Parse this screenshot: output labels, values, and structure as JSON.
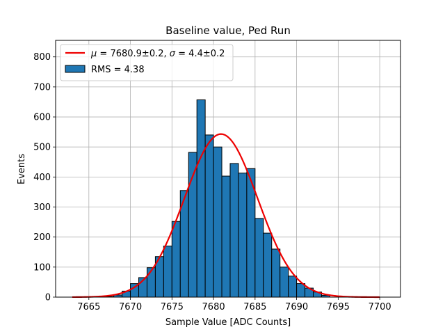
{
  "chart_data": {
    "type": "bar",
    "title": "Baseline value, Ped Run",
    "xlabel": "Sample Value [ADC Counts]",
    "ylabel": "Events",
    "xlim": [
      7661,
      7702.5
    ],
    "ylim": [
      0,
      855
    ],
    "xticks": [
      7665,
      7670,
      7675,
      7680,
      7685,
      7690,
      7695,
      7700
    ],
    "yticks": [
      0,
      100,
      200,
      300,
      400,
      500,
      600,
      700,
      800
    ],
    "grid": true,
    "legend_position": "top-left",
    "histogram": {
      "name": "RMS = 4.38",
      "color": "#1f77b4",
      "edgecolor": "#000000",
      "bin_edges": [
        7667,
        7668,
        7669,
        7670,
        7671,
        7672,
        7673,
        7674,
        7675,
        7676,
        7677,
        7678,
        7679,
        7680,
        7681,
        7682,
        7683,
        7684,
        7685,
        7686,
        7687,
        7688,
        7689,
        7690,
        7691,
        7692,
        7693,
        7694
      ],
      "counts": [
        2,
        7,
        20,
        45,
        65,
        98,
        135,
        170,
        252,
        355,
        482,
        657,
        540,
        500,
        403,
        445,
        413,
        428,
        262,
        213,
        160,
        100,
        70,
        45,
        30,
        17,
        6
      ]
    },
    "fit": {
      "name_parts": [
        {
          "text": "μ",
          "italic": true
        },
        {
          "text": " = 7680.9±0.2, ",
          "italic": false
        },
        {
          "text": "σ",
          "italic": true
        },
        {
          "text": " = 4.4±0.2",
          "italic": false
        }
      ],
      "color": "#ee0000",
      "mu": 7680.9,
      "sigma": 4.4,
      "amplitude": 543,
      "x_range": [
        7663,
        7700
      ]
    }
  }
}
